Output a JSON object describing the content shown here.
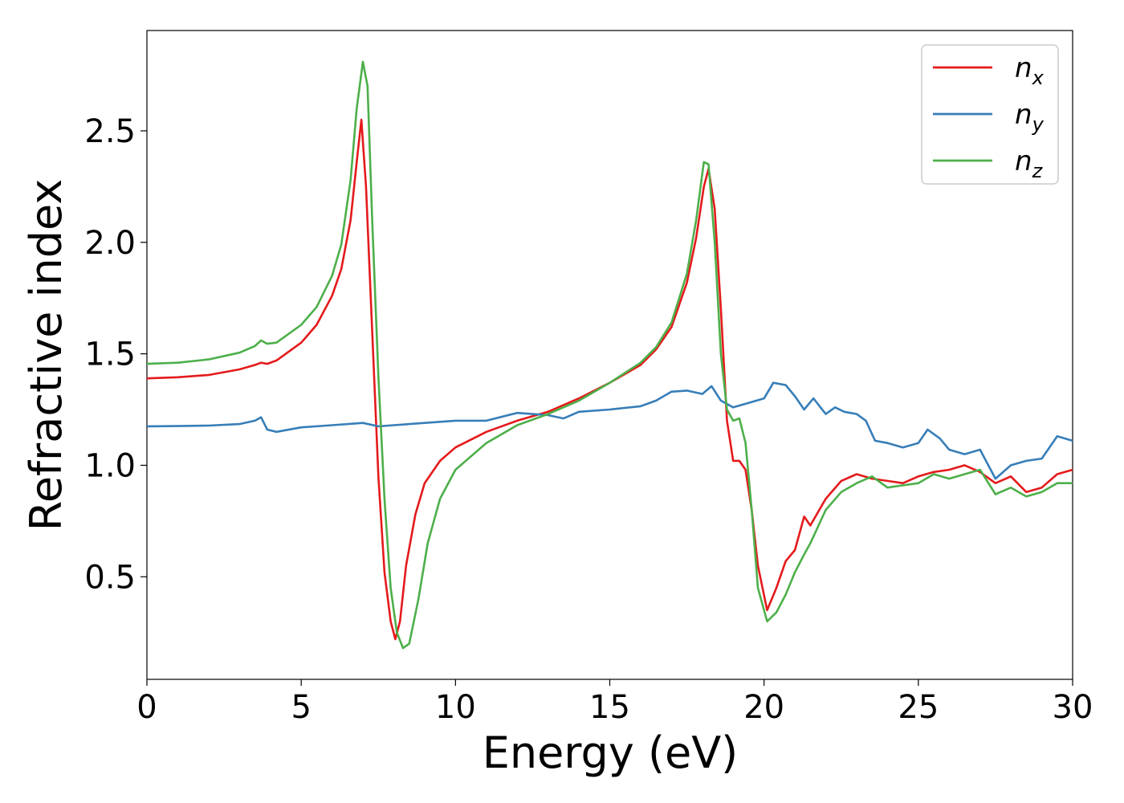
{
  "chart_data": {
    "type": "line",
    "xlabel": "Energy (eV)",
    "ylabel": "Refractive index",
    "xlim": [
      0,
      30
    ],
    "ylim": [
      0.04,
      2.95
    ],
    "xticks": [
      0,
      5,
      10,
      15,
      20,
      25,
      30
    ],
    "yticks": [
      0.5,
      1.0,
      1.5,
      2.0,
      2.5
    ],
    "xtick_labels": [
      "0",
      "5",
      "10",
      "15",
      "20",
      "25",
      "30"
    ],
    "ytick_labels": [
      "0.5",
      "1.0",
      "1.5",
      "2.0",
      "2.5"
    ],
    "grid": false,
    "legend_position": "top-right",
    "series": [
      {
        "name": "n",
        "subscript": "x",
        "color": "#e41a1c",
        "x": [
          0,
          1,
          2,
          3,
          3.5,
          3.7,
          3.9,
          4.2,
          5,
          5.5,
          6,
          6.3,
          6.6,
          6.8,
          6.95,
          7.1,
          7.3,
          7.5,
          7.7,
          7.9,
          8.05,
          8.2,
          8.4,
          8.7,
          9,
          9.5,
          10,
          11,
          12,
          13,
          14,
          15,
          16,
          16.5,
          17,
          17.5,
          17.8,
          18.05,
          18.2,
          18.4,
          18.6,
          18.8,
          19,
          19.2,
          19.4,
          19.6,
          19.8,
          20.1,
          20.4,
          20.7,
          21,
          21.3,
          21.5,
          22,
          22.5,
          23,
          23.5,
          24,
          24.5,
          25,
          25.5,
          26,
          26.5,
          27,
          27.5,
          28,
          28.5,
          29,
          29.5,
          30
        ],
        "y": [
          1.39,
          1.395,
          1.405,
          1.43,
          1.45,
          1.46,
          1.455,
          1.47,
          1.55,
          1.63,
          1.76,
          1.88,
          2.1,
          2.36,
          2.55,
          2.25,
          1.6,
          0.95,
          0.52,
          0.3,
          0.22,
          0.3,
          0.55,
          0.78,
          0.92,
          1.02,
          1.08,
          1.15,
          1.2,
          1.24,
          1.3,
          1.37,
          1.45,
          1.52,
          1.62,
          1.82,
          2.02,
          2.25,
          2.33,
          2.15,
          1.7,
          1.2,
          1.02,
          1.02,
          0.98,
          0.8,
          0.55,
          0.35,
          0.45,
          0.57,
          0.62,
          0.77,
          0.73,
          0.85,
          0.93,
          0.96,
          0.94,
          0.93,
          0.92,
          0.95,
          0.97,
          0.98,
          1.0,
          0.97,
          0.92,
          0.95,
          0.88,
          0.9,
          0.96,
          0.98
        ]
      },
      {
        "name": "n",
        "subscript": "y",
        "color": "#377eb8",
        "x": [
          0,
          1,
          2,
          3,
          3.5,
          3.7,
          3.9,
          4.2,
          5,
          6,
          7,
          7.5,
          8,
          9,
          10,
          11,
          12,
          12.5,
          13,
          13.5,
          14,
          15,
          16,
          16.5,
          17,
          17.5,
          18,
          18.3,
          18.6,
          19,
          19.5,
          20,
          20.3,
          20.7,
          21,
          21.3,
          21.6,
          22,
          22.3,
          22.6,
          23,
          23.3,
          23.6,
          24,
          24.5,
          25,
          25.3,
          25.7,
          26,
          26.5,
          27,
          27.5,
          28,
          28.5,
          29,
          29.5,
          30
        ],
        "y": [
          1.175,
          1.176,
          1.178,
          1.185,
          1.2,
          1.215,
          1.16,
          1.15,
          1.17,
          1.18,
          1.19,
          1.175,
          1.18,
          1.19,
          1.2,
          1.2,
          1.235,
          1.23,
          1.225,
          1.21,
          1.24,
          1.25,
          1.265,
          1.29,
          1.33,
          1.335,
          1.32,
          1.355,
          1.29,
          1.26,
          1.28,
          1.3,
          1.37,
          1.36,
          1.31,
          1.25,
          1.3,
          1.23,
          1.26,
          1.24,
          1.23,
          1.2,
          1.11,
          1.1,
          1.08,
          1.1,
          1.16,
          1.12,
          1.07,
          1.05,
          1.07,
          0.94,
          1.0,
          1.02,
          1.03,
          1.13,
          1.11
        ]
      },
      {
        "name": "n",
        "subscript": "z",
        "color": "#4daf4a",
        "x": [
          0,
          1,
          2,
          3,
          3.5,
          3.7,
          3.9,
          4.2,
          5,
          5.5,
          6,
          6.3,
          6.6,
          6.8,
          7.0,
          7.15,
          7.3,
          7.5,
          7.7,
          7.9,
          8.1,
          8.3,
          8.5,
          8.8,
          9.1,
          9.5,
          10,
          11,
          12,
          13,
          14,
          15,
          16,
          16.5,
          17,
          17.5,
          17.8,
          18.05,
          18.2,
          18.4,
          18.6,
          18.8,
          19,
          19.2,
          19.4,
          19.6,
          19.8,
          20.1,
          20.4,
          20.7,
          21,
          21.3,
          21.5,
          22,
          22.5,
          23,
          23.5,
          24,
          24.5,
          25,
          25.5,
          26,
          26.5,
          27,
          27.5,
          28,
          28.5,
          29,
          29.5,
          30
        ],
        "y": [
          1.455,
          1.46,
          1.475,
          1.505,
          1.535,
          1.56,
          1.545,
          1.55,
          1.63,
          1.71,
          1.85,
          1.99,
          2.28,
          2.6,
          2.81,
          2.7,
          2.1,
          1.4,
          0.85,
          0.45,
          0.25,
          0.18,
          0.2,
          0.4,
          0.65,
          0.85,
          0.98,
          1.1,
          1.18,
          1.23,
          1.29,
          1.37,
          1.46,
          1.53,
          1.64,
          1.86,
          2.1,
          2.36,
          2.35,
          2.0,
          1.5,
          1.25,
          1.2,
          1.21,
          1.1,
          0.8,
          0.45,
          0.3,
          0.34,
          0.42,
          0.52,
          0.6,
          0.65,
          0.8,
          0.88,
          0.92,
          0.95,
          0.9,
          0.91,
          0.92,
          0.96,
          0.94,
          0.96,
          0.98,
          0.87,
          0.9,
          0.86,
          0.88,
          0.92,
          0.92
        ]
      }
    ]
  }
}
